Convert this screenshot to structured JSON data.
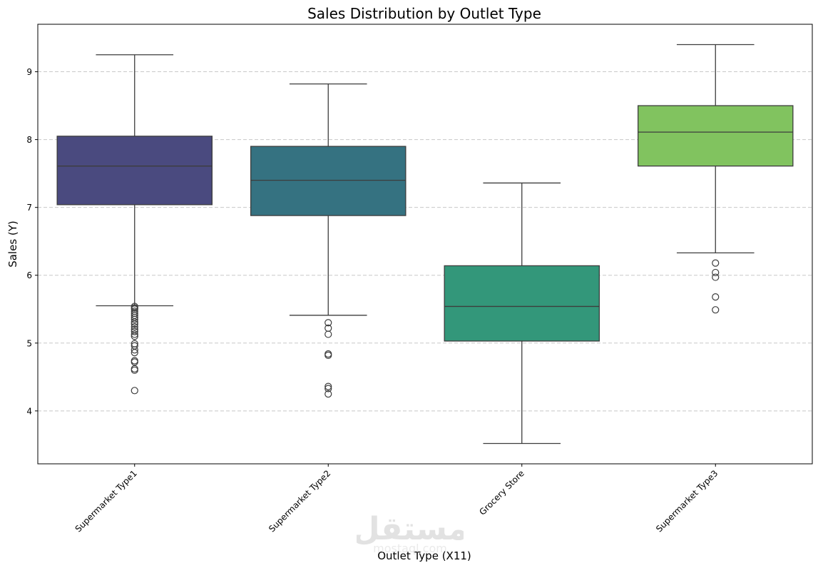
{
  "chart_data": {
    "type": "box",
    "title": "Sales Distribution by Outlet Type",
    "xlabel": "Outlet Type (X11)",
    "ylabel": "Sales (Y)",
    "ylim": [
      3.22,
      9.7
    ],
    "yticks": [
      4,
      5,
      6,
      7,
      8,
      9
    ],
    "ytick_labels": [
      "4",
      "5",
      "6",
      "7",
      "8",
      "9"
    ],
    "grid": "y-dashed",
    "categories": [
      "Supermarket Type1",
      "Supermarket Type2",
      "Grocery Store",
      "Supermarket Type3"
    ],
    "boxes": [
      {
        "category": "Supermarket Type1",
        "color": "#4a4a7f",
        "whisker_low": 5.55,
        "q1": 7.04,
        "median": 7.61,
        "q3": 8.05,
        "whisker_high": 9.25,
        "outliers": [
          5.54,
          5.52,
          5.5,
          5.47,
          5.44,
          5.41,
          5.38,
          5.35,
          5.31,
          5.28,
          5.24,
          5.2,
          5.17,
          5.13,
          5.1,
          4.99,
          4.96,
          4.9,
          4.86,
          4.74,
          4.72,
          4.62,
          4.6,
          4.3
        ]
      },
      {
        "category": "Supermarket Type2",
        "color": "#357281",
        "whisker_low": 5.41,
        "q1": 6.88,
        "median": 7.4,
        "q3": 7.9,
        "whisker_high": 8.82,
        "outliers": [
          5.3,
          5.22,
          5.13,
          4.84,
          4.82,
          4.36,
          4.33,
          4.25
        ]
      },
      {
        "category": "Grocery Store",
        "color": "#33977a",
        "whisker_low": 3.52,
        "q1": 5.03,
        "median": 5.54,
        "q3": 6.14,
        "whisker_high": 7.36,
        "outliers": []
      },
      {
        "category": "Supermarket Type3",
        "color": "#81c35f",
        "whisker_low": 6.33,
        "q1": 7.61,
        "median": 8.11,
        "q3": 8.5,
        "whisker_high": 9.4,
        "outliers": [
          6.18,
          6.04,
          5.97,
          5.68,
          5.49
        ]
      }
    ]
  },
  "watermark": {
    "arabic": "مستقل",
    "latin": "mostaql.com"
  }
}
